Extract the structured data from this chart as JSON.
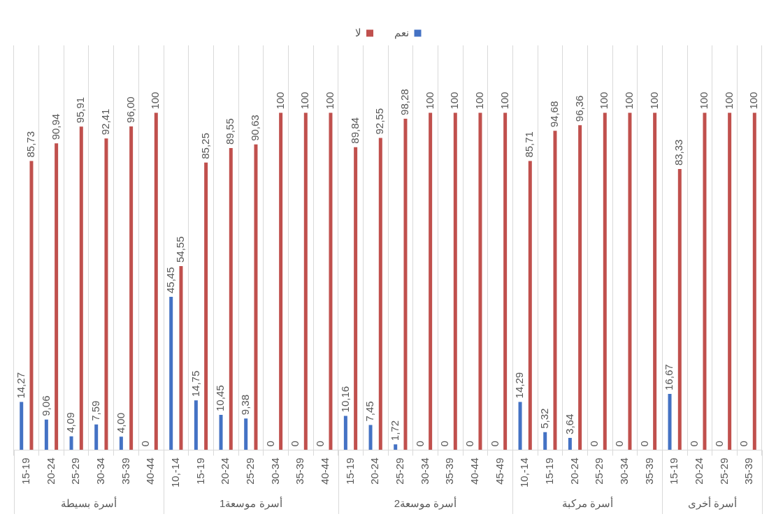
{
  "chart_data": {
    "type": "bar",
    "categories": [
      "15-19",
      "20-24",
      "25-29",
      "30-34",
      "35-39",
      "40-44",
      "10,-14",
      "15-19",
      "20-24",
      "25-29",
      "30-34",
      "35-39",
      "40-44",
      "15-19",
      "20-24",
      "25-29",
      "30-34",
      "35-39",
      "40-44",
      "45-49",
      "10,-14",
      "15-19",
      "20-24",
      "25-29",
      "30-34",
      "35-39",
      "15-19",
      "20-24",
      "25-29",
      "35-39"
    ],
    "series": [
      {
        "name": "نعم",
        "color": "#4472c4",
        "values": [
          14.27,
          9.06,
          4.09,
          7.59,
          4.0,
          0,
          45.45,
          14.75,
          10.45,
          9.38,
          0,
          0,
          0,
          10.16,
          7.45,
          1.72,
          0,
          0,
          0,
          0,
          14.29,
          5.32,
          3.64,
          0,
          0,
          0,
          16.67,
          0,
          0,
          0
        ],
        "value_labels": [
          "14,27",
          "9,06",
          "4,09",
          "7,59",
          "4,00",
          "0",
          "45,45",
          "14,75",
          "10,45",
          "9,38",
          "0",
          "0",
          "0",
          "10,16",
          "7,45",
          "1,72",
          "0",
          "0",
          "0",
          "0",
          "14,29",
          "5,32",
          "3,64",
          "0",
          "0",
          "0",
          "16,67",
          "0",
          "0",
          "0"
        ]
      },
      {
        "name": "لا",
        "color": "#c0504d",
        "values": [
          85.73,
          90.94,
          95.91,
          92.41,
          96.0,
          100,
          54.55,
          85.25,
          89.55,
          90.63,
          100,
          100,
          100,
          89.84,
          92.55,
          98.28,
          100,
          100,
          100,
          100,
          85.71,
          94.68,
          96.36,
          100,
          100,
          100,
          83.33,
          100,
          100,
          100
        ],
        "value_labels": [
          "85,73",
          "90,94",
          "95,91",
          "92,41",
          "96,00",
          "100",
          "54,55",
          "85,25",
          "89,55",
          "90,63",
          "100",
          "100",
          "100",
          "89,84",
          "92,55",
          "98,28",
          "100",
          "100",
          "100",
          "100",
          "85,71",
          "94,68",
          "96,36",
          "100",
          "100",
          "100",
          "83,33",
          "100",
          "100",
          "100"
        ]
      }
    ],
    "annotations": [
      "أسرة بسيطة",
      "أسرة موسعة1",
      "أسرة موسعة2",
      "أسرة مركبة",
      "أسرة أخرى"
    ],
    "grid": "x",
    "legend": "top"
  }
}
